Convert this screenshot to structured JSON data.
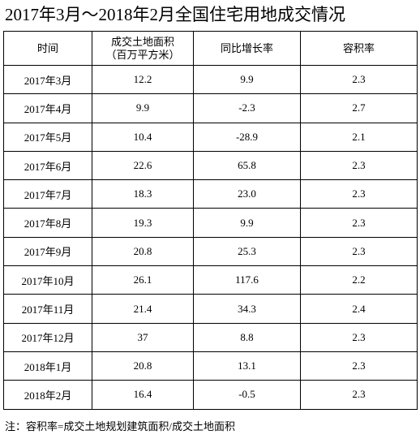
{
  "title": "2017年3月～2018年2月全国住宅用地成交情况",
  "table": {
    "header": [
      [
        "时间"
      ],
      [
        "成交土地面积",
        "（百万平方米）"
      ],
      [
        "同比增长率"
      ],
      [
        "容积率"
      ]
    ],
    "rows": [
      [
        "2017年3月",
        "12.2",
        "9.9",
        "2.3"
      ],
      [
        "2017年4月",
        "9.9",
        "-2.3",
        "2.7"
      ],
      [
        "2017年5月",
        "10.4",
        "-28.9",
        "2.1"
      ],
      [
        "2017年6月",
        "22.6",
        "65.8",
        "2.3"
      ],
      [
        "2017年7月",
        "18.3",
        "23.0",
        "2.3"
      ],
      [
        "2017年8月",
        "19.3",
        "9.9",
        "2.3"
      ],
      [
        "2017年9月",
        "20.8",
        "25.3",
        "2.3"
      ],
      [
        "2017年10月",
        "26.1",
        "117.6",
        "2.2"
      ],
      [
        "2017年11月",
        "21.4",
        "34.3",
        "2.4"
      ],
      [
        "2017年12月",
        "37",
        "8.8",
        "2.3"
      ],
      [
        "2018年1月",
        "20.8",
        "13.1",
        "2.3"
      ],
      [
        "2018年2月",
        "16.4",
        "-0.5",
        "2.3"
      ]
    ]
  },
  "note": "注：容积率=成交土地规划建筑面积/成交土地面积"
}
